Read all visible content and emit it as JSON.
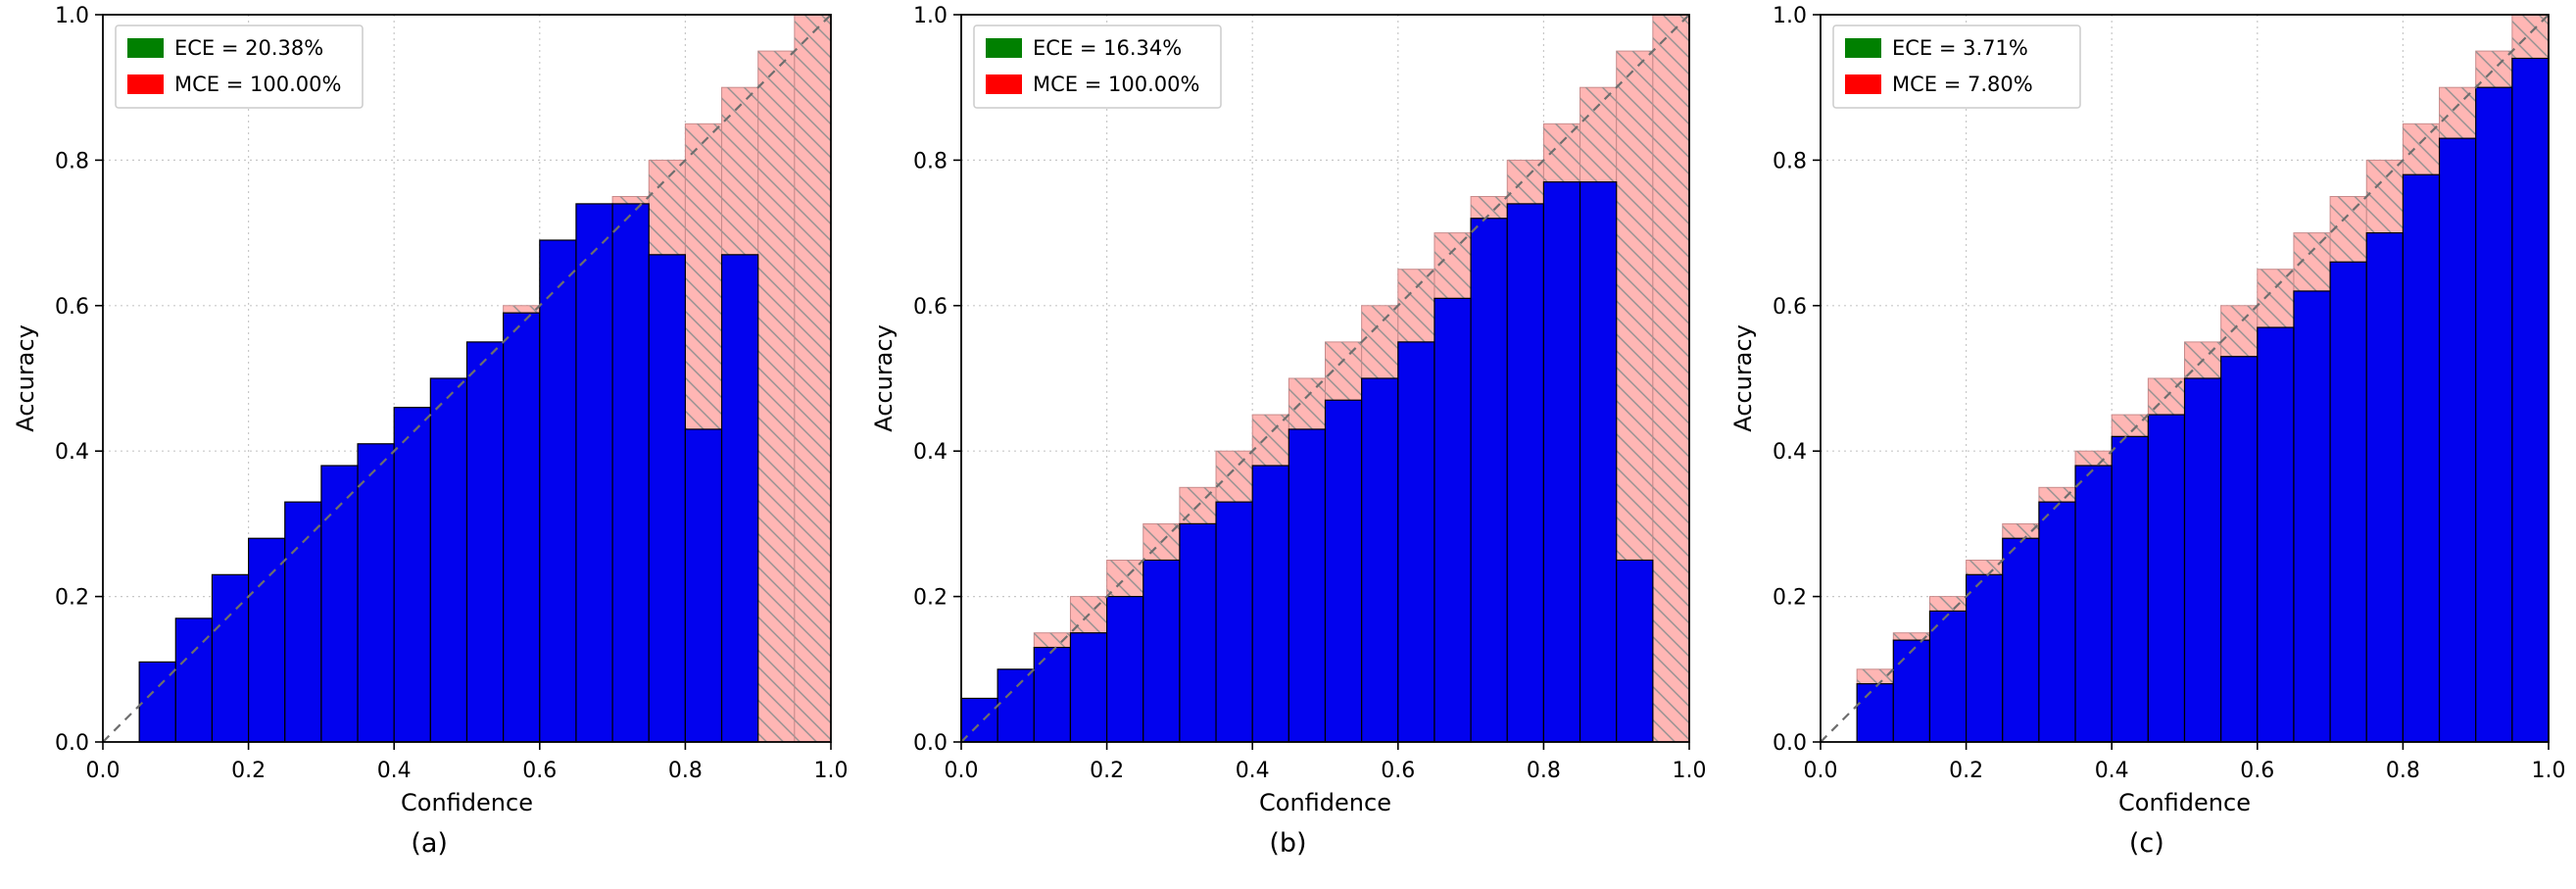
{
  "figure": {
    "background": "#ffffff",
    "accuracy_bar_color": "#0202ee",
    "accuracy_bar_edge": "#000000",
    "gap_bar_fill": "#ffb6b4",
    "gap_bar_hatch_color": "#8f8f8f",
    "gap_bar_edge": "#c98a8a",
    "diagonal_color": "#6e6e6e",
    "grid_color": "#c8c8c8",
    "spine_color": "#000000"
  },
  "chart_data": [
    {
      "type": "bar",
      "panel_label": "(a)",
      "title": "",
      "xlabel": "Confidence",
      "ylabel": "Accuracy",
      "xlim": [
        0,
        1
      ],
      "ylim": [
        0,
        1
      ],
      "grid": true,
      "diagonal_reference": "y = x dashed line (perfect calibration)",
      "bin_width": 0.05,
      "gap_rule": "pink hatched gap bar spans from bar accuracy up to bin upper-edge confidence; null = empty bin",
      "tick_values": [
        0.0,
        0.2,
        0.4,
        0.6,
        0.8,
        1.0
      ],
      "tick_labels": [
        "0.0",
        "0.2",
        "0.4",
        "0.6",
        "0.8",
        "1.0"
      ],
      "accuracy_values": [
        null,
        0.11,
        0.17,
        0.23,
        0.28,
        0.33,
        0.38,
        0.41,
        0.46,
        0.5,
        0.55,
        0.59,
        0.69,
        0.74,
        0.74,
        0.67,
        0.43,
        0.67,
        0.0,
        0.0
      ],
      "legend_position": "upper left",
      "legend": [
        {
          "label": "ECE = 20.38%",
          "swatch_color": "#008000"
        },
        {
          "label": "MCE = 100.00%",
          "swatch_color": "#ff0000"
        }
      ]
    },
    {
      "type": "bar",
      "panel_label": "(b)",
      "title": "",
      "xlabel": "Confidence",
      "ylabel": "Accuracy",
      "xlim": [
        0,
        1
      ],
      "ylim": [
        0,
        1
      ],
      "grid": true,
      "diagonal_reference": "y = x dashed line (perfect calibration)",
      "bin_width": 0.05,
      "gap_rule": "pink hatched gap bar spans from bar accuracy up to bin upper-edge confidence; null = empty bin",
      "tick_values": [
        0.0,
        0.2,
        0.4,
        0.6,
        0.8,
        1.0
      ],
      "tick_labels": [
        "0.0",
        "0.2",
        "0.4",
        "0.6",
        "0.8",
        "1.0"
      ],
      "accuracy_values": [
        0.06,
        0.1,
        0.13,
        0.15,
        0.2,
        0.25,
        0.3,
        0.33,
        0.38,
        0.43,
        0.47,
        0.5,
        0.55,
        0.61,
        0.72,
        0.74,
        0.77,
        0.77,
        0.25,
        0.0
      ],
      "legend_position": "upper left",
      "legend": [
        {
          "label": "ECE = 16.34%",
          "swatch_color": "#008000"
        },
        {
          "label": "MCE = 100.00%",
          "swatch_color": "#ff0000"
        }
      ]
    },
    {
      "type": "bar",
      "panel_label": "(c)",
      "title": "",
      "xlabel": "Confidence",
      "ylabel": "Accuracy",
      "xlim": [
        0,
        1
      ],
      "ylim": [
        0,
        1
      ],
      "grid": true,
      "diagonal_reference": "y = x dashed line (perfect calibration)",
      "bin_width": 0.05,
      "gap_rule": "pink hatched gap bar spans from bar accuracy up to bin upper-edge confidence; null = empty bin",
      "tick_values": [
        0.0,
        0.2,
        0.4,
        0.6,
        0.8,
        1.0
      ],
      "tick_labels": [
        "0.0",
        "0.2",
        "0.4",
        "0.6",
        "0.8",
        "1.0"
      ],
      "accuracy_values": [
        null,
        0.08,
        0.14,
        0.18,
        0.23,
        0.28,
        0.33,
        0.38,
        0.42,
        0.45,
        0.5,
        0.53,
        0.57,
        0.62,
        0.66,
        0.7,
        0.78,
        0.83,
        0.9,
        0.94
      ],
      "legend_position": "upper left",
      "legend": [
        {
          "label": "ECE = 3.71%",
          "swatch_color": "#008000"
        },
        {
          "label": "MCE = 7.80%",
          "swatch_color": "#ff0000"
        }
      ]
    }
  ]
}
